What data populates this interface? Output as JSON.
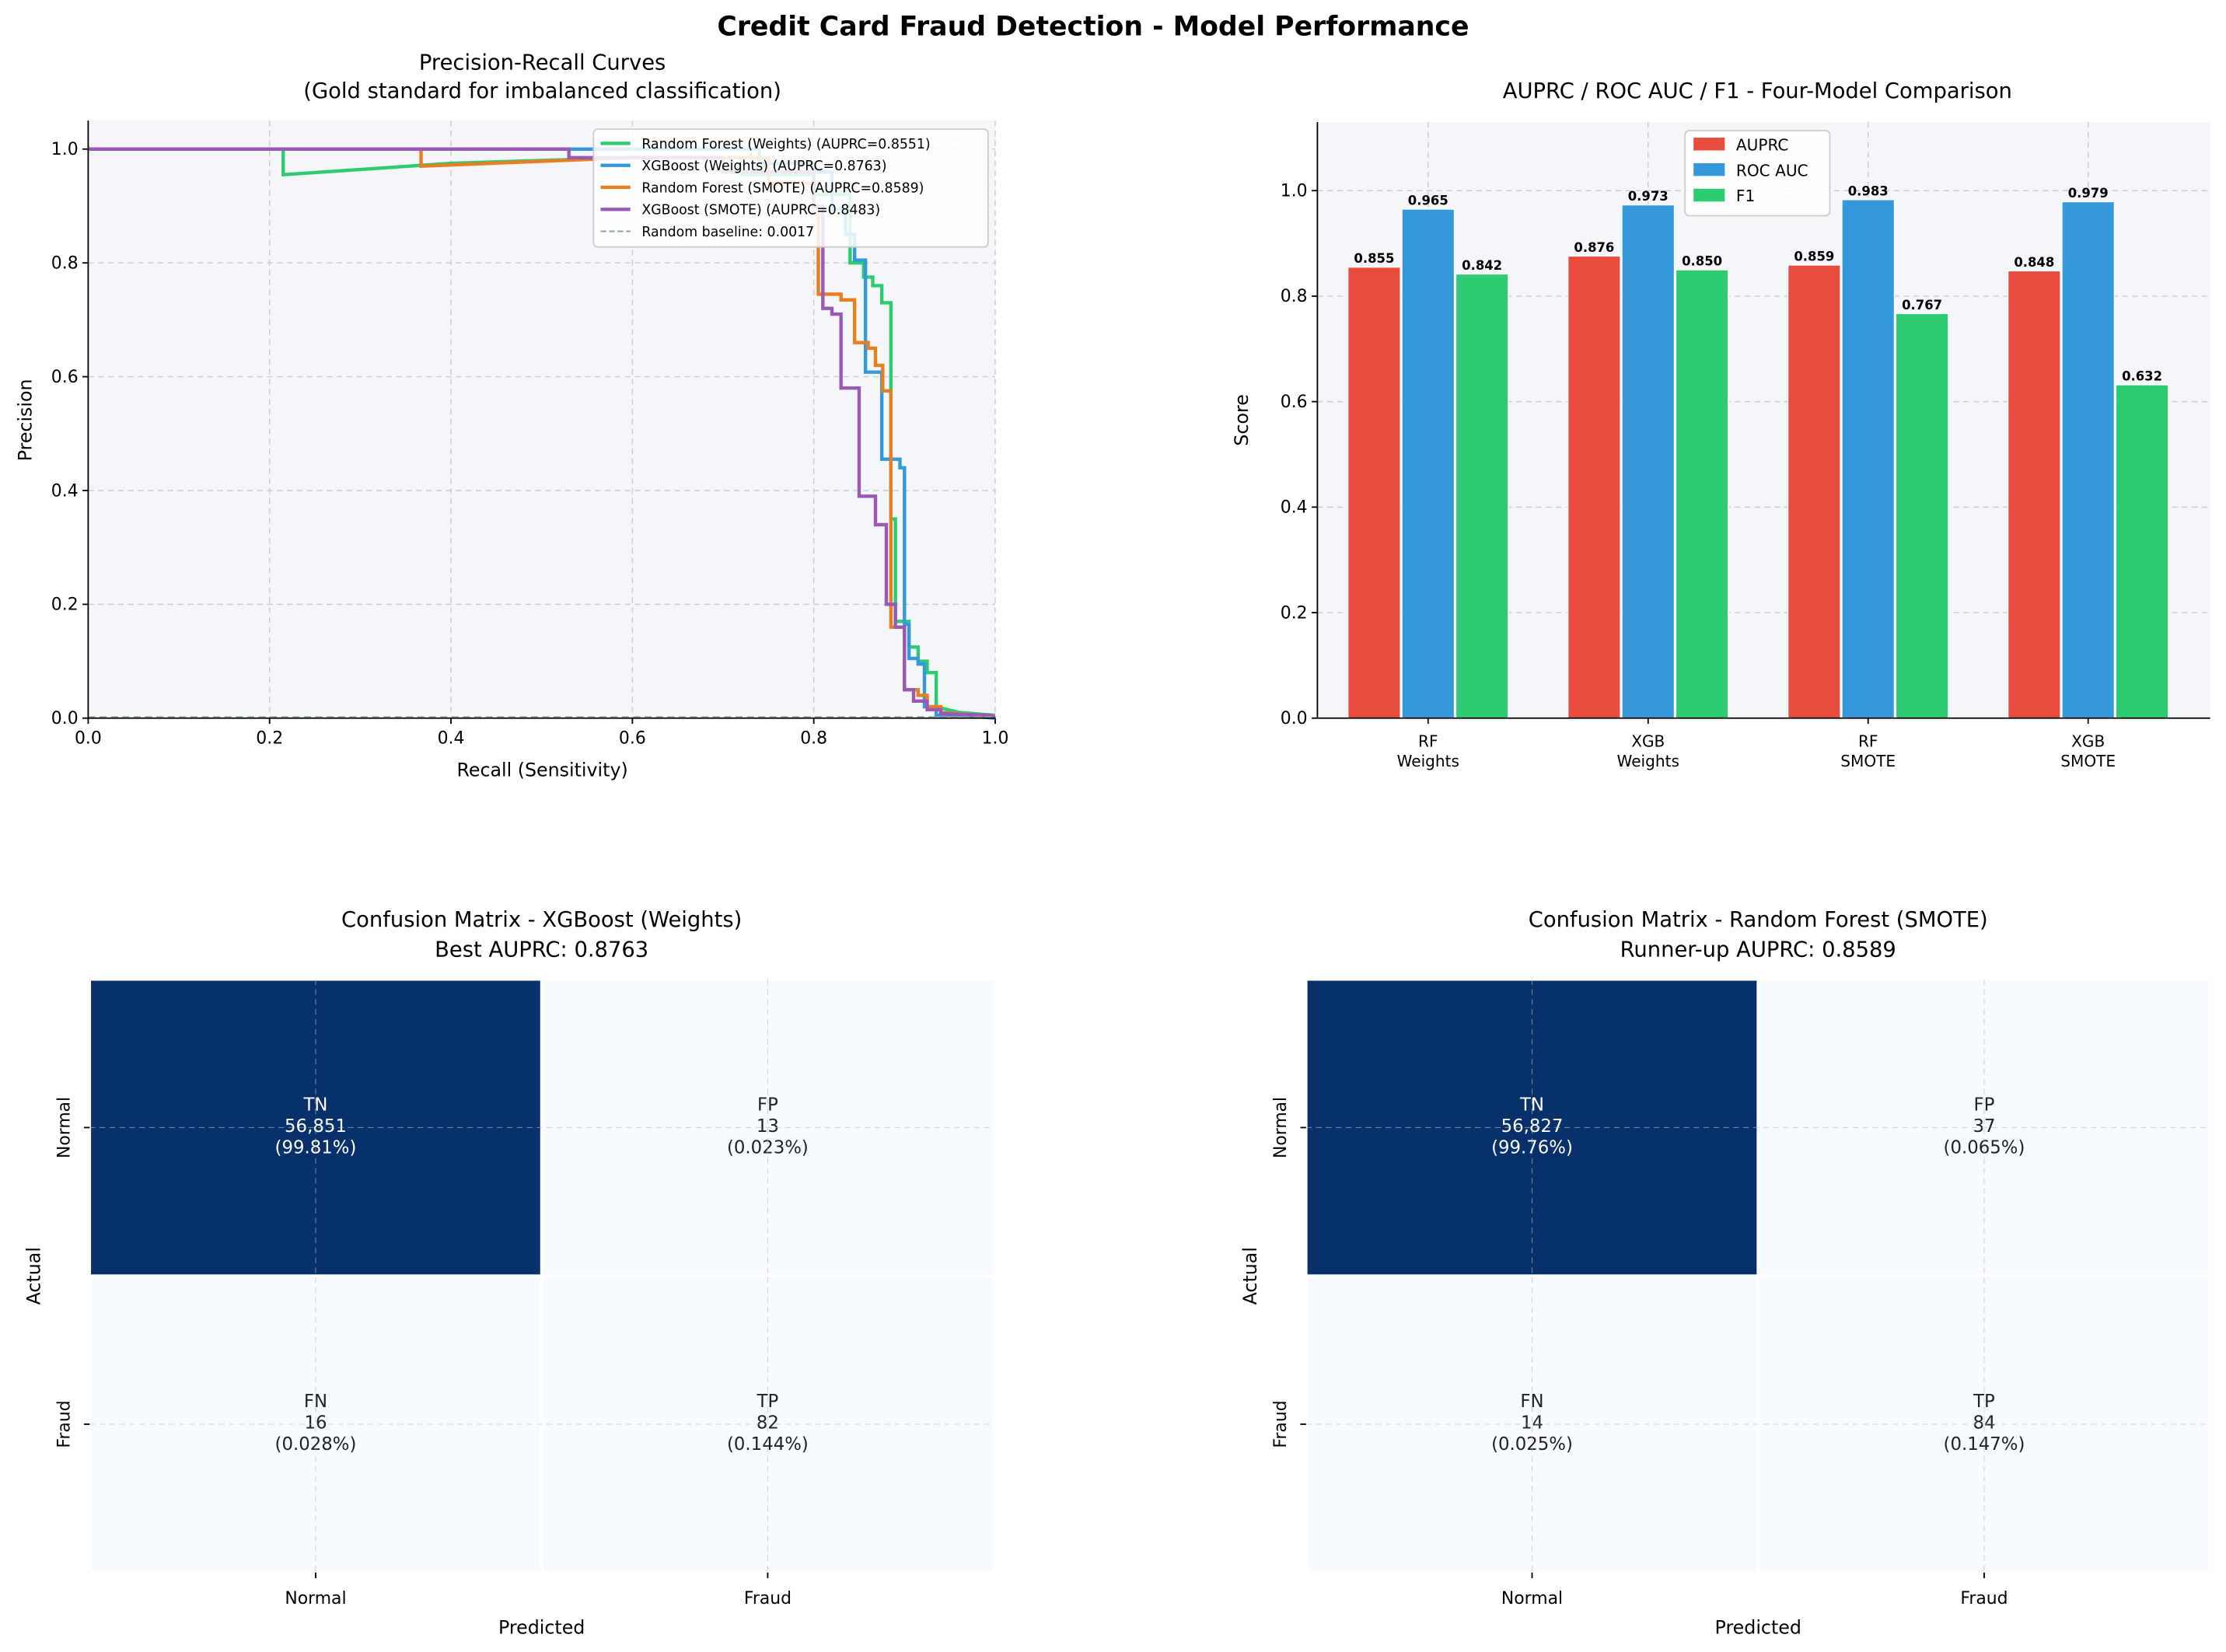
{
  "suptitle": "Credit Card Fraud Detection - Model Performance",
  "colors": {
    "green": "#2ecc71",
    "blue": "#3498db",
    "orange": "#e67e22",
    "purple": "#9b59b6",
    "red": "#e74c3c",
    "baseline": "#95a5a6",
    "axes_bg": "#f4f6fa",
    "cm_dark": "#08306b",
    "cm_light": "#f7fbff"
  },
  "chart_data": [
    {
      "type": "line",
      "title": "Precision-Recall Curves",
      "subtitle": "(Gold standard for imbalanced classification)",
      "xlabel": "Recall (Sensitivity)",
      "ylabel": "Precision",
      "xlim": [
        0,
        1.0
      ],
      "ylim": [
        0,
        1.05
      ],
      "xticks": [
        "0.0",
        "0.2",
        "0.4",
        "0.6",
        "0.8",
        "1.0"
      ],
      "yticks": [
        "0.0",
        "0.2",
        "0.4",
        "0.6",
        "0.8",
        "1.0"
      ],
      "grid": true,
      "legend_position": "top-right",
      "series": [
        {
          "name": "Random Forest (Weights)  (AUPRC=0.8551)",
          "color": "#2ecc71",
          "points": [
            [
              0,
              1
            ],
            [
              0.215,
              1
            ],
            [
              0.215,
              0.955
            ],
            [
              0.4,
              0.975
            ],
            [
              0.6,
              0.985
            ],
            [
              0.72,
              0.985
            ],
            [
              0.72,
              0.955
            ],
            [
              0.8,
              0.955
            ],
            [
              0.8,
              0.92
            ],
            [
              0.84,
              0.92
            ],
            [
              0.84,
              0.8
            ],
            [
              0.855,
              0.8
            ],
            [
              0.855,
              0.775
            ],
            [
              0.865,
              0.775
            ],
            [
              0.865,
              0.76
            ],
            [
              0.875,
              0.76
            ],
            [
              0.875,
              0.73
            ],
            [
              0.885,
              0.73
            ],
            [
              0.885,
              0.35
            ],
            [
              0.89,
              0.35
            ],
            [
              0.89,
              0.17
            ],
            [
              0.905,
              0.17
            ],
            [
              0.905,
              0.125
            ],
            [
              0.915,
              0.125
            ],
            [
              0.915,
              0.1
            ],
            [
              0.925,
              0.1
            ],
            [
              0.925,
              0.08
            ],
            [
              0.935,
              0.08
            ],
            [
              0.935,
              0.02
            ],
            [
              0.96,
              0.01
            ],
            [
              1,
              0.005
            ]
          ]
        },
        {
          "name": "XGBoost (Weights)  (AUPRC=0.8763)",
          "color": "#3498db",
          "points": [
            [
              0,
              1
            ],
            [
              0.74,
              1
            ],
            [
              0.74,
              0.975
            ],
            [
              0.8,
              0.975
            ],
            [
              0.8,
              0.96
            ],
            [
              0.82,
              0.96
            ],
            [
              0.82,
              0.895
            ],
            [
              0.835,
              0.895
            ],
            [
              0.835,
              0.85
            ],
            [
              0.845,
              0.85
            ],
            [
              0.845,
              0.805
            ],
            [
              0.857,
              0.805
            ],
            [
              0.857,
              0.608
            ],
            [
              0.875,
              0.608
            ],
            [
              0.875,
              0.455
            ],
            [
              0.895,
              0.455
            ],
            [
              0.895,
              0.44
            ],
            [
              0.9,
              0.44
            ],
            [
              0.9,
              0.165
            ],
            [
              0.905,
              0.165
            ],
            [
              0.905,
              0.105
            ],
            [
              0.915,
              0.105
            ],
            [
              0.915,
              0.095
            ],
            [
              0.922,
              0.095
            ],
            [
              0.922,
              0.02
            ],
            [
              0.935,
              0.02
            ],
            [
              0.935,
              0.005
            ],
            [
              0.96,
              0.005
            ],
            [
              1,
              0
            ]
          ]
        },
        {
          "name": "Random Forest (SMOTE)  (AUPRC=0.8589)",
          "color": "#e67e22",
          "points": [
            [
              0,
              1
            ],
            [
              0.367,
              1
            ],
            [
              0.367,
              0.97
            ],
            [
              0.6,
              0.985
            ],
            [
              0.75,
              0.985
            ],
            [
              0.75,
              0.94
            ],
            [
              0.8,
              0.94
            ],
            [
              0.8,
              0.9
            ],
            [
              0.805,
              0.9
            ],
            [
              0.805,
              0.745
            ],
            [
              0.83,
              0.745
            ],
            [
              0.83,
              0.735
            ],
            [
              0.845,
              0.735
            ],
            [
              0.845,
              0.66
            ],
            [
              0.86,
              0.66
            ],
            [
              0.86,
              0.65
            ],
            [
              0.868,
              0.65
            ],
            [
              0.868,
              0.62
            ],
            [
              0.876,
              0.62
            ],
            [
              0.876,
              0.575
            ],
            [
              0.885,
              0.575
            ],
            [
              0.885,
              0.16
            ],
            [
              0.9,
              0.16
            ],
            [
              0.9,
              0.05
            ],
            [
              0.915,
              0.05
            ],
            [
              0.915,
              0.04
            ],
            [
              0.925,
              0.04
            ],
            [
              0.925,
              0.02
            ],
            [
              0.94,
              0.02
            ],
            [
              0.94,
              0.01
            ],
            [
              1,
              0.003
            ]
          ]
        },
        {
          "name": "XGBoost (SMOTE)  (AUPRC=0.8483)",
          "color": "#9b59b6",
          "points": [
            [
              0,
              1
            ],
            [
              0.53,
              1
            ],
            [
              0.53,
              0.985
            ],
            [
              0.7,
              0.985
            ],
            [
              0.7,
              0.96
            ],
            [
              0.8,
              0.96
            ],
            [
              0.8,
              0.9
            ],
            [
              0.81,
              0.9
            ],
            [
              0.81,
              0.72
            ],
            [
              0.82,
              0.72
            ],
            [
              0.82,
              0.71
            ],
            [
              0.83,
              0.71
            ],
            [
              0.83,
              0.58
            ],
            [
              0.85,
              0.58
            ],
            [
              0.85,
              0.39
            ],
            [
              0.868,
              0.39
            ],
            [
              0.868,
              0.34
            ],
            [
              0.88,
              0.34
            ],
            [
              0.88,
              0.2
            ],
            [
              0.89,
              0.2
            ],
            [
              0.89,
              0.16
            ],
            [
              0.9,
              0.16
            ],
            [
              0.9,
              0.05
            ],
            [
              0.91,
              0.05
            ],
            [
              0.91,
              0.03
            ],
            [
              0.925,
              0.03
            ],
            [
              0.925,
              0.015
            ],
            [
              0.94,
              0.015
            ],
            [
              0.94,
              0.008
            ],
            [
              0.995,
              0.005
            ],
            [
              1,
              0
            ]
          ]
        },
        {
          "name": "Random baseline: 0.0017",
          "color": "#95a5a6",
          "dashed": true,
          "points": [
            [
              0,
              0.0017
            ],
            [
              1,
              0.0017
            ]
          ]
        }
      ]
    },
    {
      "type": "bar",
      "title": "AUPRC / ROC AUC / F1 - Four-Model Comparison",
      "ylabel": "Score",
      "ylim": [
        0,
        1.13
      ],
      "yticks": [
        "0.0",
        "0.2",
        "0.4",
        "0.6",
        "0.8",
        "1.0"
      ],
      "categories": [
        [
          "RF",
          "Weights"
        ],
        [
          "XGB",
          "Weights"
        ],
        [
          "RF",
          "SMOTE"
        ],
        [
          "XGB",
          "SMOTE"
        ]
      ],
      "grid": true,
      "legend_position": "top-center",
      "series": [
        {
          "name": "AUPRC",
          "color": "#e74c3c",
          "values": [
            0.855,
            0.876,
            0.859,
            0.848
          ],
          "labels": [
            "0.855",
            "0.876",
            "0.859",
            "0.848"
          ]
        },
        {
          "name": "ROC AUC",
          "color": "#3498db",
          "values": [
            0.965,
            0.973,
            0.983,
            0.979
          ],
          "labels": [
            "0.965",
            "0.973",
            "0.983",
            "0.979"
          ]
        },
        {
          "name": "F1",
          "color": "#2ecc71",
          "values": [
            0.842,
            0.85,
            0.767,
            0.632
          ],
          "labels": [
            "0.842",
            "0.850",
            "0.767",
            "0.632"
          ]
        }
      ]
    },
    {
      "type": "heatmap",
      "title": "Confusion Matrix - XGBoost (Weights)",
      "subtitle": "Best AUPRC: 0.8763",
      "xlabel": "Predicted",
      "ylabel": "Actual",
      "xticks": [
        "Normal",
        "Fraud"
      ],
      "yticks": [
        "Normal",
        "Fraud"
      ],
      "cells": [
        {
          "tag": "TN",
          "count": "56,851",
          "pct": "(99.81%)",
          "value": 56851
        },
        {
          "tag": "FP",
          "count": "13",
          "pct": "(0.023%)",
          "value": 13
        },
        {
          "tag": "FN",
          "count": "16",
          "pct": "(0.028%)",
          "value": 16
        },
        {
          "tag": "TP",
          "count": "82",
          "pct": "(0.144%)",
          "value": 82
        }
      ]
    },
    {
      "type": "heatmap",
      "title": "Confusion Matrix - Random Forest (SMOTE)",
      "subtitle": "Runner-up AUPRC: 0.8589",
      "xlabel": "Predicted",
      "ylabel": "Actual",
      "xticks": [
        "Normal",
        "Fraud"
      ],
      "yticks": [
        "Normal",
        "Fraud"
      ],
      "cells": [
        {
          "tag": "TN",
          "count": "56,827",
          "pct": "(99.76%)",
          "value": 56827
        },
        {
          "tag": "FP",
          "count": "37",
          "pct": "(0.065%)",
          "value": 37
        },
        {
          "tag": "FN",
          "count": "14",
          "pct": "(0.025%)",
          "value": 14
        },
        {
          "tag": "TP",
          "count": "84",
          "pct": "(0.147%)",
          "value": 84
        }
      ]
    }
  ]
}
